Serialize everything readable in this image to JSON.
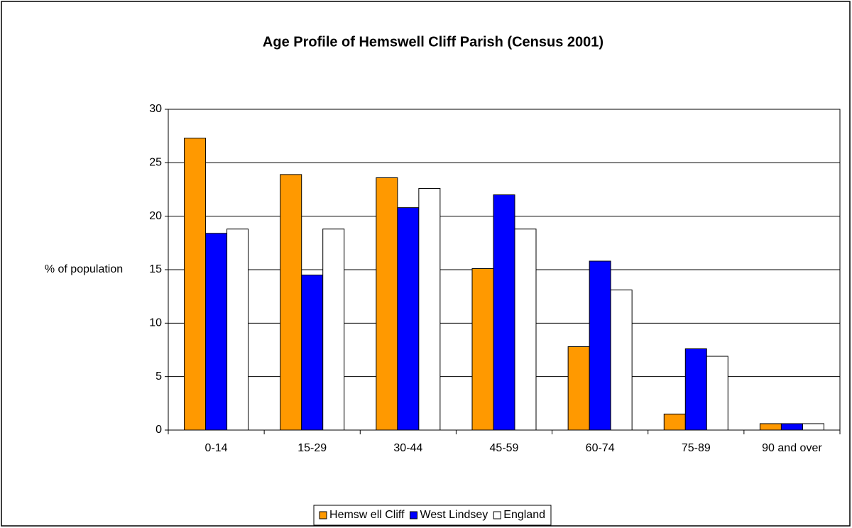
{
  "chart_data": {
    "type": "bar",
    "title": "Age Profile of Hemswell Cliff Parish (Census 2001)",
    "y_label": "% of population",
    "categories": [
      "0-14",
      "15-29",
      "30-44",
      "45-59",
      "60-74",
      "75-89",
      "90 and over"
    ],
    "series": [
      {
        "name": "Hemsw ell Cliff",
        "color": "#ff9900",
        "values": [
          27.3,
          23.9,
          23.6,
          15.1,
          7.8,
          1.5,
          0.6
        ]
      },
      {
        "name": "West Lindsey",
        "color": "#0000ff",
        "values": [
          18.4,
          14.5,
          20.8,
          22.0,
          15.8,
          7.6,
          0.6
        ]
      },
      {
        "name": "England",
        "color": "#ffffff",
        "values": [
          18.8,
          18.8,
          22.6,
          18.8,
          13.1,
          6.9,
          0.6
        ]
      }
    ],
    "ylim": [
      0,
      30
    ],
    "yticks": [
      0,
      5,
      10,
      15,
      20,
      25,
      30
    ],
    "grid": true,
    "legend": "bottom"
  }
}
